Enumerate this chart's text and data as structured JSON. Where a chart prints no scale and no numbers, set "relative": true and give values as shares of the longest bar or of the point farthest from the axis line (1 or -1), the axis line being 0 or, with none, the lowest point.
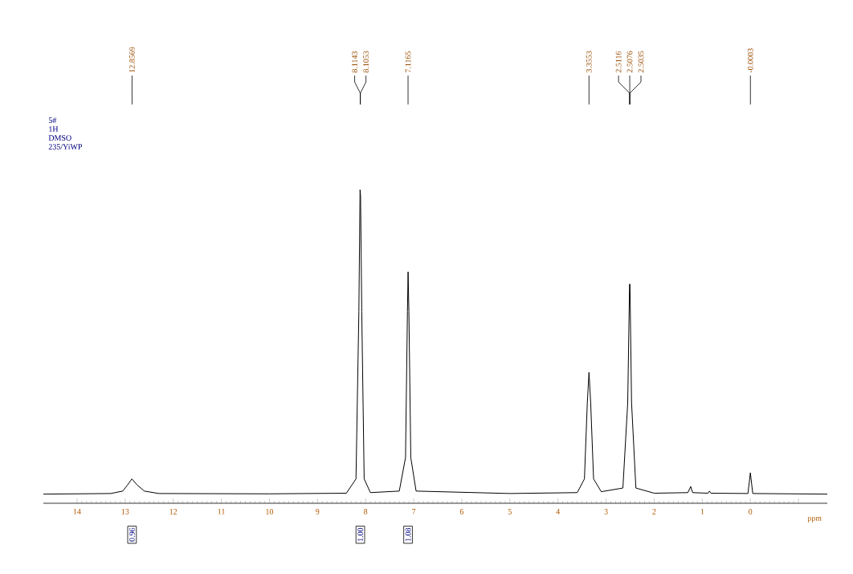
{
  "chart_data": {
    "type": "line",
    "xlabel": "ppm",
    "relative": true,
    "marker": "none",
    "xlim": [
      14.7,
      -1.6
    ],
    "xticks": [
      14,
      13,
      12,
      11,
      10,
      9,
      8,
      7,
      6,
      5,
      4,
      3,
      2,
      1,
      0,
      {
        "value": -1,
        "label": null
      }
    ],
    "x": [
      14.7,
      13.3,
      13.05,
      12.95,
      12.86,
      12.75,
      12.6,
      12.3,
      10,
      8.4,
      8.2,
      8.14,
      8.115,
      8.105,
      8.08,
      8.03,
      7.9,
      7.3,
      7.17,
      7.13,
      7.1165,
      7.1,
      7.06,
      6.95,
      5,
      3.6,
      3.45,
      3.39,
      3.3553,
      3.32,
      3.26,
      3.1,
      2.65,
      2.55,
      2.5116,
      2.5076,
      2.5035,
      2.47,
      2.38,
      2.0,
      1.3,
      1.24,
      1.2,
      0.88,
      0.85,
      0.82,
      0.05,
      0.0,
      -0.05,
      -1.6
    ],
    "series": [
      {
        "color": "#000000",
        "values": [
          0,
          0.002,
          0.01,
          0.03,
          0.05,
          0.03,
          0.01,
          0.002,
          0.001,
          0.003,
          0.05,
          0.6,
          1.0,
          0.98,
          0.6,
          0.05,
          0.005,
          0.01,
          0.12,
          0.6,
          0.73,
          0.6,
          0.12,
          0.01,
          0.002,
          0.005,
          0.05,
          0.3,
          0.4,
          0.3,
          0.05,
          0.008,
          0.02,
          0.3,
          0.69,
          0.69,
          0.69,
          0.3,
          0.02,
          0.003,
          0.005,
          0.025,
          0.005,
          0.003,
          0.01,
          0.003,
          0.002,
          0.07,
          0.002,
          0
        ]
      }
    ],
    "annotations": [
      "5#",
      "1H",
      "DMSO",
      "235/YiWP",
      "12.8569",
      "8.1143",
      "8.1053",
      "7.1165",
      "3.3553",
      "2.5116",
      "2.5076",
      "2.5035",
      "-0.0003",
      "0.96",
      "1.00",
      "1.08"
    ]
  }
}
